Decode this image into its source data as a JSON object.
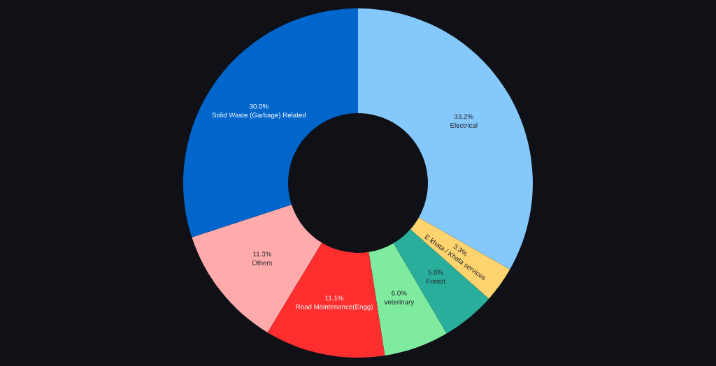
{
  "chart_data": {
    "type": "donut",
    "categories": [
      "Electrical",
      "E khata / Khata services",
      "Forest",
      "veterinary",
      "Road Maintenance(Engg)",
      "Others",
      "Solid Waste (Garbage) Related"
    ],
    "values": [
      33.2,
      3.3,
      5.0,
      6.0,
      11.1,
      11.3,
      30.0
    ],
    "colors": [
      "#85c8fc",
      "#ffd36e",
      "#2aae9c",
      "#7eeb9e",
      "#ff2e2e",
      "#ffabab",
      "#0066cc"
    ],
    "value_labels": [
      "33.2%",
      "3.3%",
      "5.0%",
      "6.0%",
      "11.1%",
      "11.3%",
      "30.0%"
    ],
    "legend": false
  }
}
